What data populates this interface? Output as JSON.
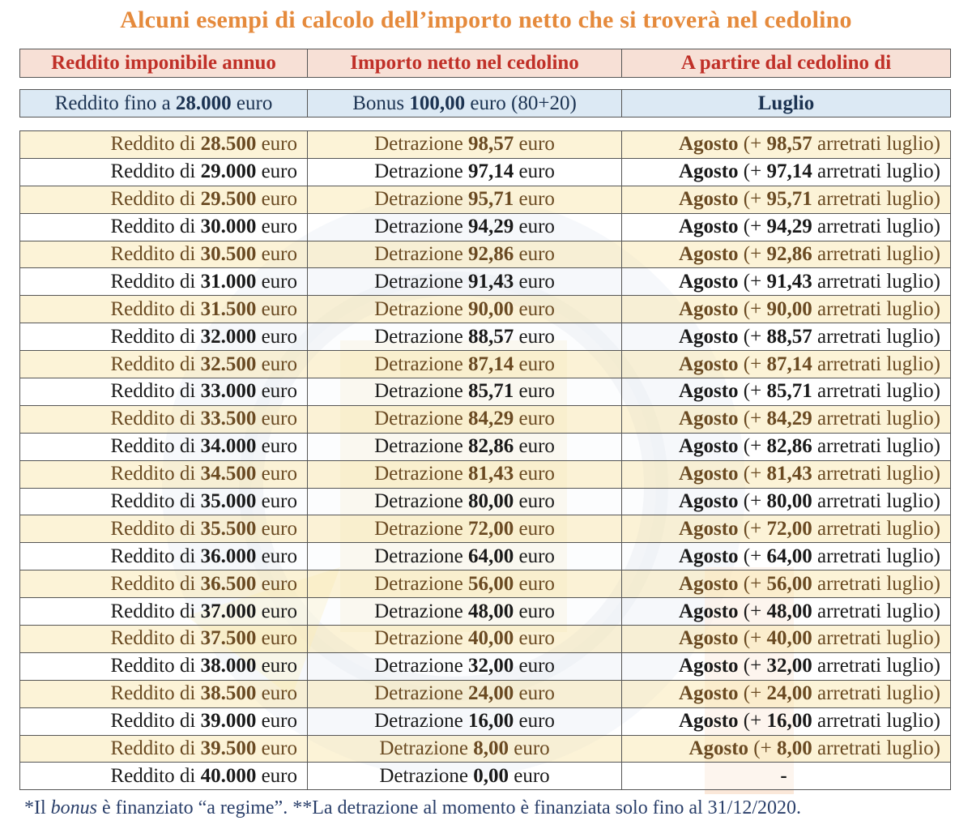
{
  "title": "Alcuni esempi di calcolo dell’importo netto che si troverà nel cedolino",
  "headers": [
    "Reddito imponibile annuo",
    "Importo netto nel cedolino",
    "A partire dal cedolino di"
  ],
  "bonus_row": {
    "c1_pre": "Reddito fino a ",
    "c1_bold": "28.000",
    "c1_post": " euro",
    "c2_pre": "Bonus ",
    "c2_bold": "100,00",
    "c2_post": " euro (80+20)",
    "c3": "Luglio"
  },
  "labels": {
    "reddito_di": "Reddito di ",
    "euro": " euro",
    "detrazione": "Detrazione ",
    "agosto": "Agosto",
    "plus_open": " (+ ",
    "arretrati": " arretrati luglio)"
  },
  "rows": [
    {
      "income": "28.500",
      "amount": "98,57"
    },
    {
      "income": "29.000",
      "amount": "97,14"
    },
    {
      "income": "29.500",
      "amount": "95,71"
    },
    {
      "income": "30.000",
      "amount": "94,29"
    },
    {
      "income": "30.500",
      "amount": "92,86"
    },
    {
      "income": "31.000",
      "amount": "91,43"
    },
    {
      "income": "31.500",
      "amount": "90,00"
    },
    {
      "income": "32.000",
      "amount": "88,57"
    },
    {
      "income": "32.500",
      "amount": "87,14"
    },
    {
      "income": "33.000",
      "amount": "85,71"
    },
    {
      "income": "33.500",
      "amount": "84,29"
    },
    {
      "income": "34.000",
      "amount": "82,86"
    },
    {
      "income": "34.500",
      "amount": "81,43"
    },
    {
      "income": "35.000",
      "amount": "80,00"
    },
    {
      "income": "35.500",
      "amount": "72,00"
    },
    {
      "income": "36.000",
      "amount": "64,00"
    },
    {
      "income": "36.500",
      "amount": "56,00"
    },
    {
      "income": "37.000",
      "amount": "48,00"
    },
    {
      "income": "37.500",
      "amount": "40,00"
    },
    {
      "income": "38.000",
      "amount": "32,00"
    },
    {
      "income": "38.500",
      "amount": "24,00"
    },
    {
      "income": "39.000",
      "amount": "16,00"
    },
    {
      "income": "39.500",
      "amount": "8,00"
    },
    {
      "income": "40.000",
      "amount": "0,00"
    }
  ],
  "last_row_c3": "-",
  "footer": {
    "p1": "*Il ",
    "italic": "bonus",
    "p2": " è finanziato “a regime”. **La detrazione al momento è finanziata solo fino al 31/12/2020."
  }
}
